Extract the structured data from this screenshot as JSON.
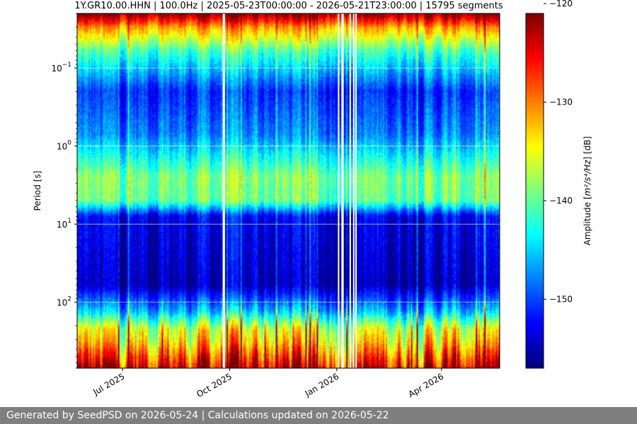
{
  "chart_data": {
    "type": "heatmap",
    "title": "1Y.GR10.00.HHN | 100.0Hz | 2025-05-23T00:00:00 - 2026-05-21T23:00:00 | 15795 segments",
    "xlabel": "",
    "ylabel": "Period [s]",
    "x_range": [
      "2025-05-23",
      "2026-05-21"
    ],
    "y_scale": "log",
    "y_inverted": true,
    "ylim": [
      0.02,
      700
    ],
    "x_ticks": [
      {
        "date": "2025-07-01",
        "label": "Jul 2025"
      },
      {
        "date": "2025-10-01",
        "label": "Oct 2025"
      },
      {
        "date": "2026-01-01",
        "label": "Jan 2026"
      },
      {
        "date": "2026-04-01",
        "label": "Apr 2026"
      }
    ],
    "y_ticks": [
      {
        "value": 0.1,
        "base": "10",
        "exp": "−1"
      },
      {
        "value": 1,
        "base": "10",
        "exp": "0"
      },
      {
        "value": 10,
        "base": "10",
        "exp": "1"
      },
      {
        "value": 100,
        "base": "10",
        "exp": "2"
      }
    ],
    "grid": true,
    "colorbar": {
      "label_prefix": "Amplitude [",
      "label_math": "m²/s⁴/Hz",
      "label_suffix": "] [dB]",
      "colormap": "jet",
      "range": [
        -157,
        -121
      ],
      "ticks": [
        {
          "value": -120,
          "label": "−120"
        },
        {
          "value": -130,
          "label": "−130"
        },
        {
          "value": -140,
          "label": "−140"
        },
        {
          "value": -150,
          "label": "−150"
        }
      ]
    },
    "gaps": [
      {
        "start": "2025-09-25",
        "end": "2025-09-27"
      },
      {
        "start": "2026-01-02",
        "end": "2026-01-03"
      },
      {
        "start": "2026-01-05",
        "end": "2026-01-07"
      },
      {
        "start": "2026-01-12",
        "end": "2026-01-13"
      },
      {
        "start": "2026-01-15",
        "end": "2026-01-16"
      },
      {
        "start": "2026-01-17",
        "end": "2026-01-18"
      }
    ],
    "spectrum_profile": [
      {
        "period": 0.02,
        "db": -121
      },
      {
        "period": 0.03,
        "db": -131
      },
      {
        "period": 0.06,
        "db": -141
      },
      {
        "period": 0.2,
        "db": -151
      },
      {
        "period": 0.7,
        "db": -148
      },
      {
        "period": 2.5,
        "db": -139
      },
      {
        "period": 5,
        "db": -140
      },
      {
        "period": 8,
        "db": -153
      },
      {
        "period": 60,
        "db": -155
      },
      {
        "period": 130,
        "db": -146
      },
      {
        "period": 220,
        "db": -136
      },
      {
        "period": 330,
        "db": -133
      },
      {
        "period": 700,
        "db": -124
      }
    ]
  },
  "footer": {
    "text": "Generated by SeedPSD on 2026-05-24 | Calculations updated on 2026-05-22"
  }
}
